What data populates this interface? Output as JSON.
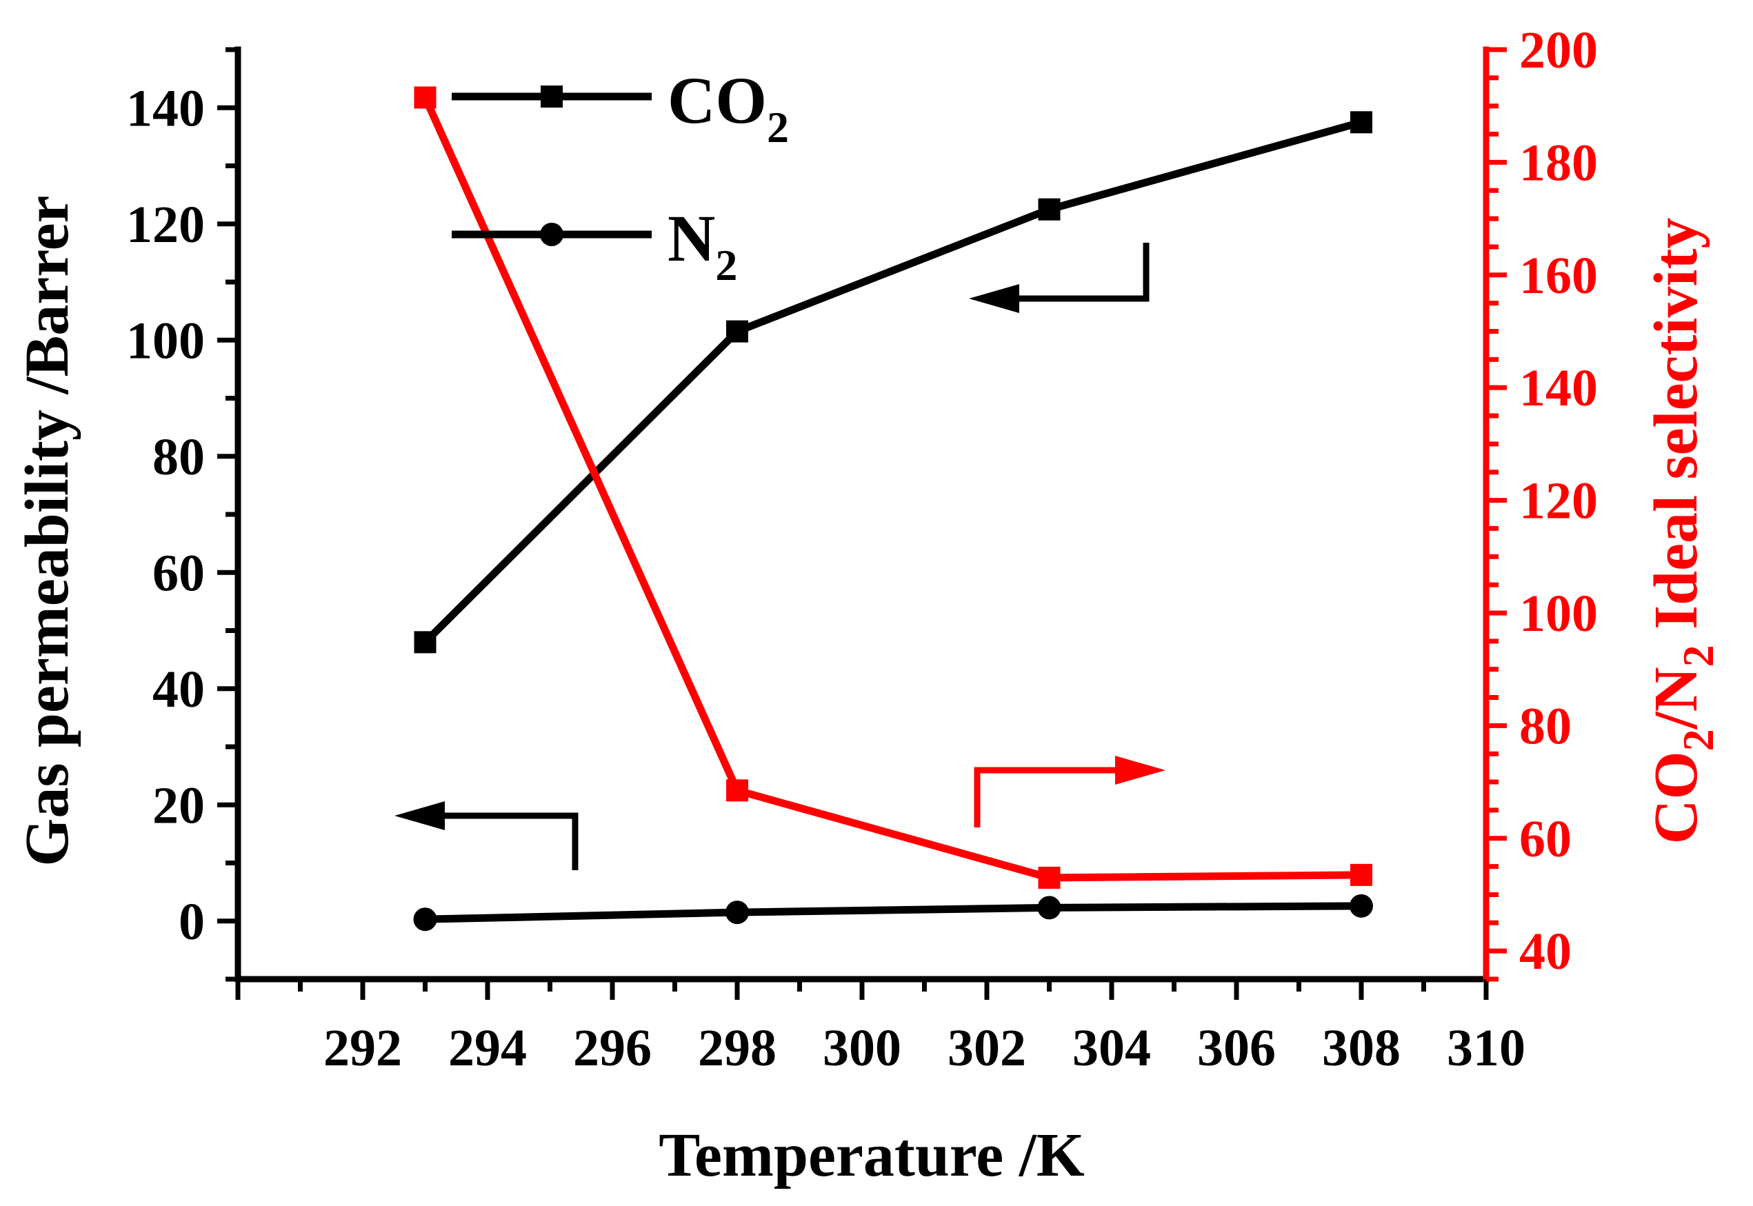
{
  "chart_data": {
    "type": "line",
    "xlabel": "Temperature /K",
    "ylabel": "Gas permeability /Barrer",
    "y2label": {
      "part1": "CO",
      "sub1": "2",
      "part2": "/N",
      "sub2": "2",
      "part3": " Ideal selectivity"
    },
    "xlim": [
      290,
      310
    ],
    "ylim": [
      -10,
      150
    ],
    "y2lim": [
      35,
      200
    ],
    "xticks": [
      292,
      294,
      296,
      298,
      300,
      302,
      304,
      306,
      308,
      310
    ],
    "yticks": [
      0,
      20,
      40,
      60,
      80,
      100,
      120,
      140
    ],
    "y2ticks": [
      40,
      60,
      80,
      100,
      120,
      140,
      160,
      180,
      200
    ],
    "series": [
      {
        "name": "CO2",
        "axis": "left",
        "marker": "square",
        "color": "#000000",
        "x": [
          293,
          298,
          303,
          308
        ],
        "y": [
          48,
          101.5,
          122.5,
          137.5
        ]
      },
      {
        "name": "N2",
        "axis": "left",
        "marker": "circle",
        "color": "#000000",
        "x": [
          293,
          298,
          303,
          308
        ],
        "y": [
          0.3,
          1.5,
          2.3,
          2.6
        ]
      },
      {
        "axis": "right",
        "marker": "square",
        "color": "#ff0000",
        "x": [
          293,
          298,
          303,
          308
        ],
        "y": [
          191.5,
          68.5,
          53,
          53.5
        ]
      }
    ],
    "legend": {
      "placement": "top-left",
      "entries": [
        {
          "base": "CO",
          "sub": "2"
        },
        {
          "base": "N",
          "sub": "2"
        }
      ]
    },
    "colors": {
      "left_axis": "#000000",
      "right_axis": "#ff0000"
    },
    "grid": false
  }
}
